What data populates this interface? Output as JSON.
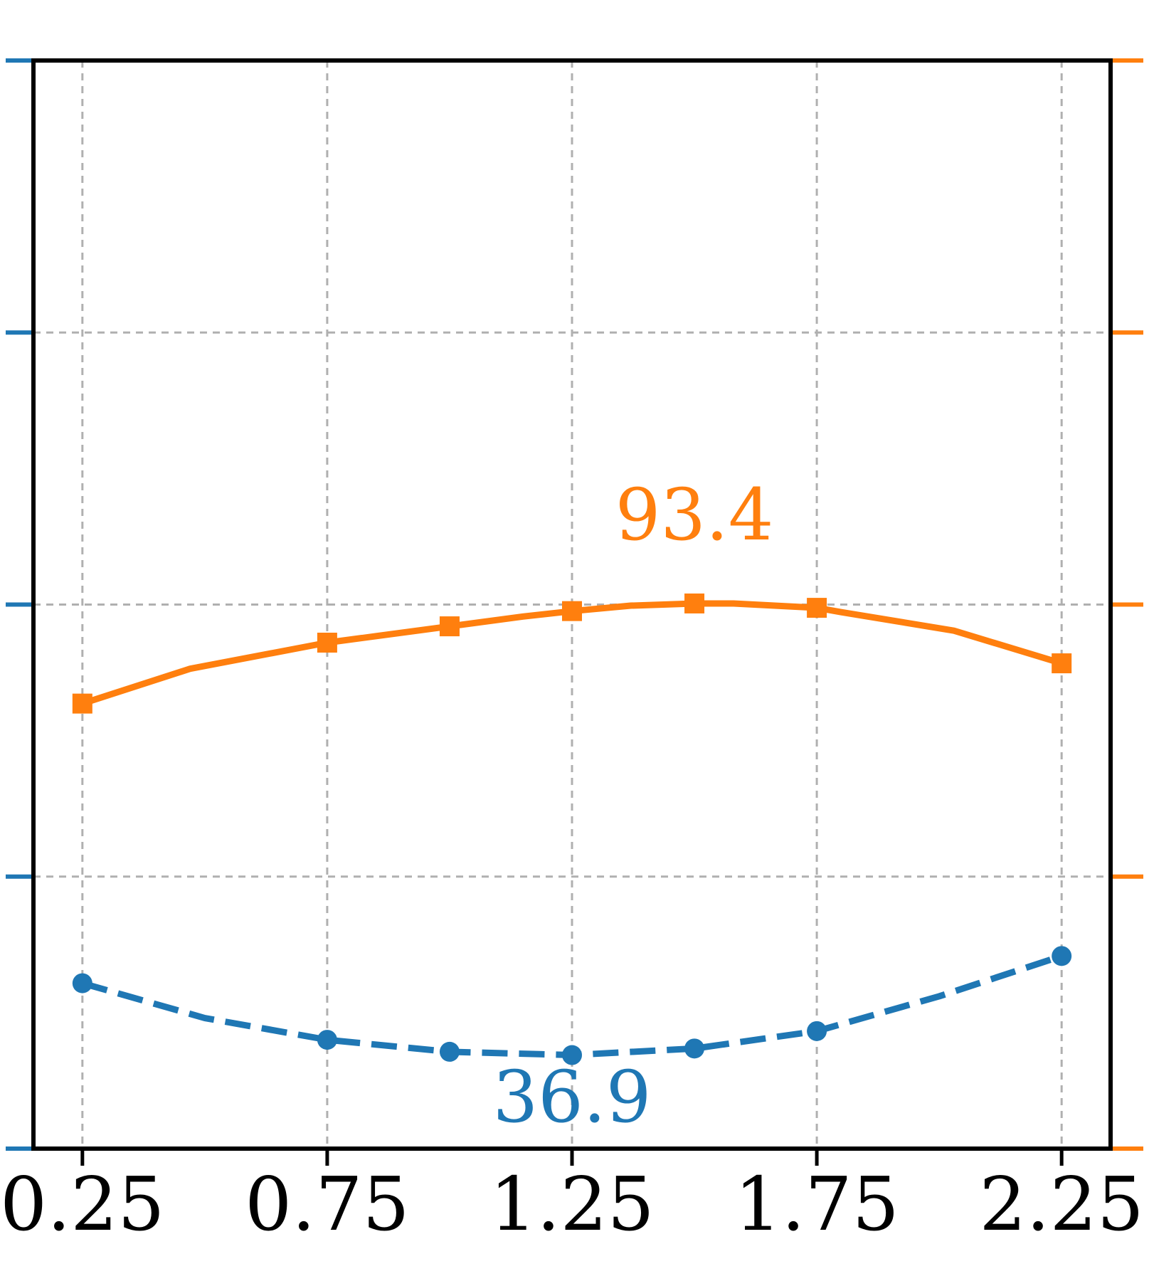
{
  "chart_data": {
    "type": "line",
    "title": "",
    "xlabel": "",
    "ylabel": "",
    "xlim": [
      0.15,
      2.35
    ],
    "x_ticks": [
      "0.25",
      "0.75",
      "1.25",
      "1.75",
      "2.25"
    ],
    "x_tick_values": [
      0.25,
      0.75,
      1.25,
      1.75,
      2.25
    ],
    "grid": true,
    "left_axis_color": "#1f77b4",
    "right_axis_color": "#ff7f0e",
    "series": [
      {
        "axis": "right",
        "color": "#ff7f0e",
        "line_style": "solid",
        "marker": "square",
        "x": [
          0.25,
          0.47,
          0.75,
          1.0,
          1.15,
          1.25,
          1.37,
          1.5,
          1.58,
          1.75,
          1.8,
          2.03,
          2.25
        ],
        "y": [
          0.409,
          0.441,
          0.465,
          0.48,
          0.489,
          0.494,
          0.499,
          0.501,
          0.501,
          0.497,
          0.493,
          0.476,
          0.446
        ],
        "marker_x": [
          0.25,
          0.75,
          1.0,
          1.25,
          1.5,
          1.75,
          2.25
        ],
        "annotation": {
          "text": "93.4",
          "x": 1.5,
          "y": 0.56
        }
      },
      {
        "axis": "left",
        "color": "#1f77b4",
        "line_style": "dashed",
        "marker": "circle",
        "x": [
          0.25,
          0.5,
          0.75,
          1.0,
          1.25,
          1.5,
          1.75,
          2.0,
          2.25
        ],
        "y": [
          0.152,
          0.12,
          0.1,
          0.089,
          0.086,
          0.092,
          0.108,
          0.14,
          0.177
        ],
        "marker_x": [
          0.25,
          0.75,
          1.0,
          1.25,
          1.5,
          1.75,
          2.25
        ],
        "annotation": {
          "text": "36.9",
          "x": 1.25,
          "y": 0.025
        }
      }
    ]
  }
}
